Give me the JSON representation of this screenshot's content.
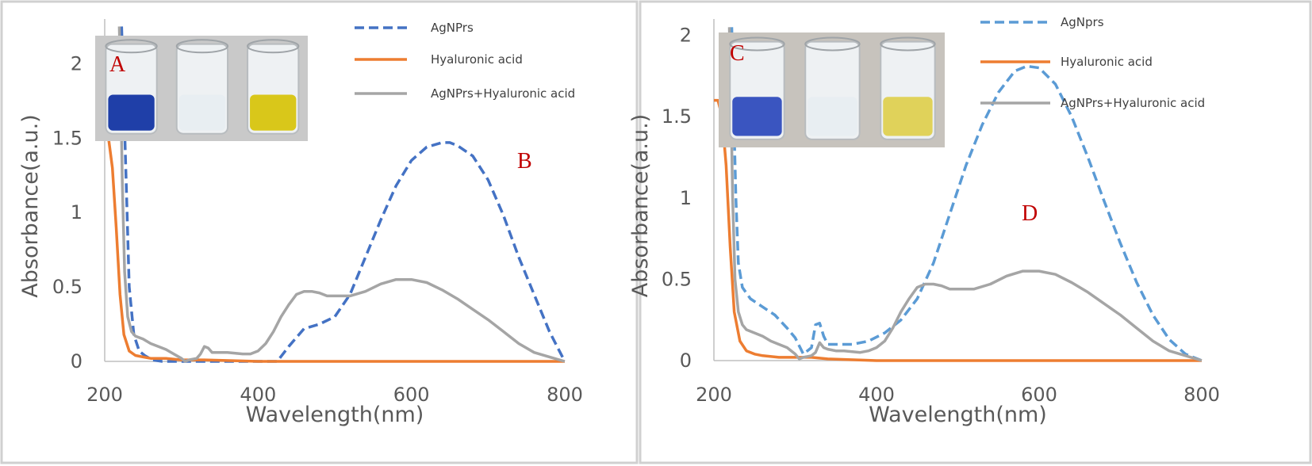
{
  "chart_data": [
    {
      "type": "line",
      "xlabel": "Wavelength(nm)",
      "ylabel": "Absorbance(a.u.)",
      "xlim": [
        200,
        800
      ],
      "ylim": [
        0,
        2.3
      ],
      "xticks": [
        200,
        400,
        600,
        800
      ],
      "yticks": [
        0,
        0.5,
        1,
        1.5,
        2
      ],
      "ytick_labels": [
        "0",
        "0.5",
        "1",
        "1.5",
        "2"
      ],
      "grid": false,
      "legend_position": "top-right",
      "annotations": {
        "inset_letter": "A",
        "panel_letter": "B"
      },
      "inset_photo": {
        "cuvette_colors": [
          "#1f3fa8",
          "#e8eef2",
          "#d9c71a"
        ],
        "background": "#c9c9c9"
      },
      "series": [
        {
          "name": "AgNPrs",
          "color": "#4472c4",
          "dash": true,
          "x": [
            222,
            224,
            228,
            232,
            238,
            245,
            252,
            262,
            275,
            300,
            350,
            400,
            425,
            440,
            460,
            480,
            500,
            520,
            540,
            560,
            580,
            600,
            620,
            640,
            650,
            660,
            680,
            700,
            720,
            740,
            760,
            780,
            790,
            800
          ],
          "y": [
            2.25,
            1.9,
            1.2,
            0.5,
            0.18,
            0.07,
            0.04,
            0.01,
            0,
            0,
            0,
            0,
            0,
            0.1,
            0.22,
            0.25,
            0.3,
            0.45,
            0.7,
            0.95,
            1.18,
            1.35,
            1.44,
            1.47,
            1.47,
            1.45,
            1.38,
            1.22,
            0.98,
            0.7,
            0.45,
            0.2,
            0.1,
            0
          ]
        },
        {
          "name": "Hyaluronic acid",
          "color": "#ed7d31",
          "dash": false,
          "x": [
            200,
            205,
            210,
            215,
            220,
            225,
            232,
            240,
            250,
            260,
            280,
            300,
            330,
            400,
            500,
            600,
            700,
            800
          ],
          "y": [
            1.6,
            1.5,
            1.3,
            0.9,
            0.45,
            0.18,
            0.07,
            0.04,
            0.03,
            0.02,
            0.02,
            0.01,
            0.01,
            0,
            0,
            0,
            0,
            0
          ]
        },
        {
          "name": "AgNPrs+Hyaluronic acid",
          "color": "#a5a5a5",
          "dash": false,
          "x": [
            219,
            221,
            223,
            226,
            230,
            235,
            240,
            250,
            260,
            270,
            280,
            290,
            300,
            305,
            310,
            320,
            325,
            330,
            335,
            340,
            350,
            360,
            380,
            390,
            400,
            410,
            420,
            430,
            440,
            450,
            460,
            470,
            480,
            490,
            500,
            520,
            540,
            560,
            580,
            600,
            620,
            640,
            660,
            680,
            700,
            720,
            740,
            760,
            780,
            800
          ],
          "y": [
            2.25,
            1.8,
            1.2,
            0.6,
            0.3,
            0.2,
            0.17,
            0.15,
            0.12,
            0.1,
            0.08,
            0.05,
            0.02,
            0,
            0.01,
            0.02,
            0.05,
            0.1,
            0.09,
            0.06,
            0.06,
            0.06,
            0.05,
            0.05,
            0.07,
            0.12,
            0.2,
            0.3,
            0.38,
            0.45,
            0.47,
            0.47,
            0.46,
            0.44,
            0.44,
            0.44,
            0.47,
            0.52,
            0.55,
            0.55,
            0.53,
            0.48,
            0.42,
            0.35,
            0.28,
            0.2,
            0.12,
            0.06,
            0.03,
            0
          ]
        }
      ]
    },
    {
      "type": "line",
      "xlabel": "Wavelength(nm)",
      "ylabel": "Absorbance(a.u.)",
      "xlim": [
        200,
        800
      ],
      "ylim": [
        0,
        2.1
      ],
      "xticks": [
        200,
        400,
        600,
        800
      ],
      "yticks": [
        0,
        0.5,
        1,
        1.5,
        2
      ],
      "ytick_labels": [
        "0",
        "0.5",
        "1",
        "1.5",
        "2"
      ],
      "grid": false,
      "legend_position": "top-right",
      "annotations": {
        "inset_letter": "C",
        "panel_letter": "D"
      },
      "inset_photo": {
        "cuvette_colors": [
          "#3a55c0",
          "#e8eef2",
          "#e0d25a"
        ],
        "background": "#c7c3bd"
      },
      "series": [
        {
          "name": "AgNprs",
          "color": "#5b9bd5",
          "dash": true,
          "x": [
            222,
            224,
            227,
            230,
            235,
            245,
            260,
            275,
            290,
            300,
            310,
            320,
            325,
            330,
            335,
            340,
            350,
            370,
            390,
            410,
            430,
            450,
            470,
            490,
            510,
            530,
            550,
            570,
            585,
            600,
            620,
            640,
            660,
            680,
            700,
            720,
            740,
            760,
            780,
            800
          ],
          "y": [
            2.05,
            1.6,
            1.0,
            0.6,
            0.45,
            0.38,
            0.33,
            0.28,
            0.2,
            0.14,
            0.04,
            0.08,
            0.22,
            0.23,
            0.15,
            0.1,
            0.1,
            0.1,
            0.12,
            0.17,
            0.25,
            0.38,
            0.6,
            0.9,
            1.2,
            1.45,
            1.65,
            1.78,
            1.81,
            1.8,
            1.7,
            1.5,
            1.25,
            0.98,
            0.72,
            0.48,
            0.28,
            0.13,
            0.04,
            0
          ]
        },
        {
          "name": "Hyaluronic acid",
          "color": "#ed7d31",
          "dash": false,
          "x": [
            200,
            205,
            210,
            215,
            220,
            225,
            232,
            240,
            250,
            260,
            280,
            300,
            320,
            340,
            400,
            500,
            600,
            700,
            800
          ],
          "y": [
            1.6,
            1.6,
            1.5,
            1.2,
            0.7,
            0.3,
            0.12,
            0.06,
            0.04,
            0.03,
            0.02,
            0.02,
            0.02,
            0.01,
            0,
            0,
            0,
            0,
            0
          ]
        },
        {
          "name": "AgNPrs+Hyaluronic acid",
          "color": "#a5a5a5",
          "dash": false,
          "x": [
            219,
            221,
            223,
            226,
            230,
            235,
            240,
            250,
            260,
            270,
            280,
            290,
            300,
            305,
            310,
            320,
            325,
            330,
            335,
            340,
            350,
            360,
            380,
            390,
            400,
            410,
            420,
            430,
            440,
            450,
            460,
            470,
            480,
            490,
            500,
            520,
            540,
            560,
            580,
            600,
            620,
            640,
            660,
            680,
            700,
            720,
            740,
            760,
            780,
            800
          ],
          "y": [
            2.05,
            1.6,
            1.0,
            0.5,
            0.3,
            0.22,
            0.19,
            0.17,
            0.15,
            0.12,
            0.1,
            0.08,
            0.04,
            0.01,
            0.02,
            0.03,
            0.05,
            0.11,
            0.08,
            0.07,
            0.06,
            0.06,
            0.05,
            0.06,
            0.08,
            0.12,
            0.2,
            0.3,
            0.38,
            0.45,
            0.47,
            0.47,
            0.46,
            0.44,
            0.44,
            0.44,
            0.47,
            0.52,
            0.55,
            0.55,
            0.53,
            0.48,
            0.42,
            0.35,
            0.28,
            0.2,
            0.12,
            0.06,
            0.03,
            0
          ]
        }
      ]
    }
  ]
}
